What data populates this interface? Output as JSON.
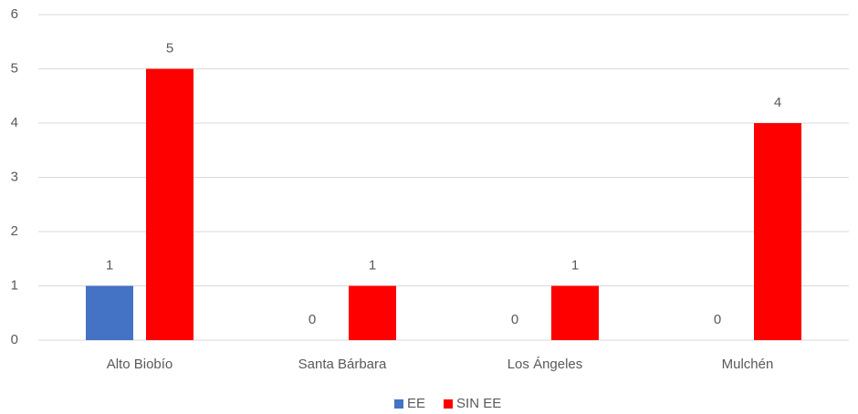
{
  "chart_data": {
    "type": "bar",
    "categories": [
      "Alto Biobío",
      "Santa Bárbara",
      "Los Ángeles",
      "Mulchén"
    ],
    "series": [
      {
        "name": "EE",
        "color": "#4472c4",
        "values": [
          1,
          0,
          0,
          0
        ]
      },
      {
        "name": "SIN EE",
        "color": "#ff0000",
        "values": [
          5,
          1,
          1,
          4
        ]
      }
    ],
    "ylim": [
      0,
      6
    ],
    "yticks": [
      0,
      1,
      2,
      3,
      4,
      5,
      6
    ],
    "grid": true,
    "legend": "bottom"
  }
}
